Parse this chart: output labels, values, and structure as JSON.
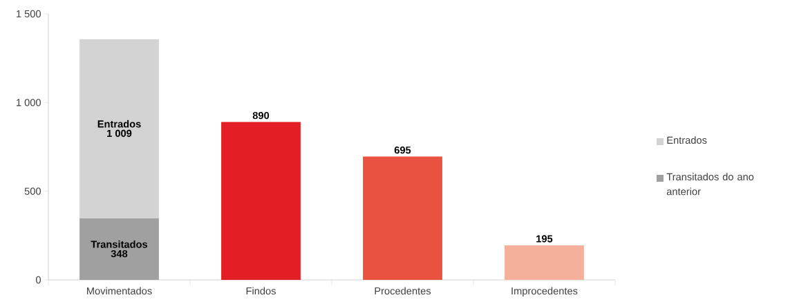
{
  "chart_data": {
    "type": "bar",
    "stacked": true,
    "categories": [
      "Movimentados",
      "Findos",
      "Procedentes",
      "Improcedentes"
    ],
    "series": [
      {
        "name": "Transitados do ano anterior",
        "color": "#a0a0a0",
        "values": [
          348,
          null,
          null,
          null
        ],
        "value_labels": [
          "348",
          null,
          null,
          null
        ]
      },
      {
        "name": "Entrados",
        "color": "#d3d3d3",
        "values": [
          1009,
          null,
          null,
          null
        ],
        "value_labels": [
          "1 009",
          null,
          null,
          null
        ]
      },
      {
        "colors": [
          "#e31e24",
          "#e31e24",
          "#e8523f",
          "#f4b09a"
        ],
        "values": [
          null,
          890,
          695,
          195
        ],
        "value_labels": [
          null,
          "890",
          "695",
          "195"
        ]
      }
    ],
    "annotations": [
      "Transitados",
      "Entrados"
    ],
    "ylim": [
      0,
      1500
    ],
    "yticks": [
      0,
      500,
      {
        "value": 1000,
        "label": "1 000"
      },
      {
        "value": 1500,
        "label": "1 500"
      }
    ],
    "legend": "right"
  }
}
